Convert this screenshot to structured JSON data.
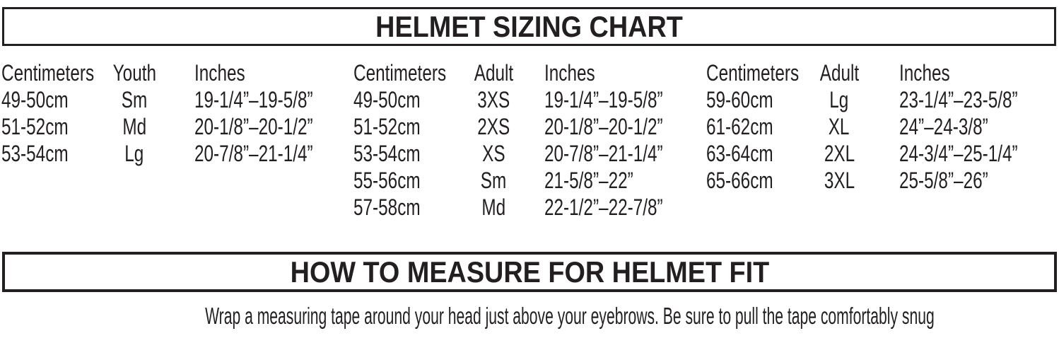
{
  "document": {
    "sizing_header": "HELMET SIZING CHART",
    "measure_header": "HOW TO MEASURE FOR HELMET FIT",
    "instruction": "Wrap a measuring tape around your head just above your eyebrows. Be sure to pull the tape comfortably snug"
  },
  "sizing_table": {
    "groups": [
      {
        "headers": [
          "Centimeters",
          "Youth",
          "Inches"
        ],
        "rows": [
          [
            "49-50cm",
            "Sm",
            "19-1/4”–19-5/8”"
          ],
          [
            "51-52cm",
            "Md",
            "20-1/8”–20-1/2”"
          ],
          [
            "53-54cm",
            "Lg",
            "20-7/8”–21-1/4”"
          ]
        ]
      },
      {
        "headers": [
          "Centimeters",
          "Adult",
          "Inches"
        ],
        "rows": [
          [
            "49-50cm",
            "3XS",
            "19-1/4”–19-5/8”"
          ],
          [
            "51-52cm",
            "2XS",
            "20-1/8”–20-1/2”"
          ],
          [
            "53-54cm",
            "XS",
            "20-7/8”–21-1/4”"
          ],
          [
            "55-56cm",
            "Sm",
            "21-5/8”–22”"
          ],
          [
            "57-58cm",
            "Md",
            "22-1/2”–22-7/8”"
          ]
        ]
      },
      {
        "headers": [
          "Centimeters",
          "Adult",
          "Inches"
        ],
        "rows": [
          [
            "59-60cm",
            "Lg",
            "23-1/4”–23-5/8”"
          ],
          [
            "61-62cm",
            "XL",
            "24”–24-3/8”"
          ],
          [
            "63-64cm",
            "2XL",
            "24-3/4”–25-1/4”"
          ],
          [
            "65-66cm",
            "3XL",
            "25-5/8”–26”"
          ]
        ]
      }
    ]
  },
  "colors": {
    "text": "#231f20",
    "border": "#231f20",
    "background": "#ffffff"
  }
}
